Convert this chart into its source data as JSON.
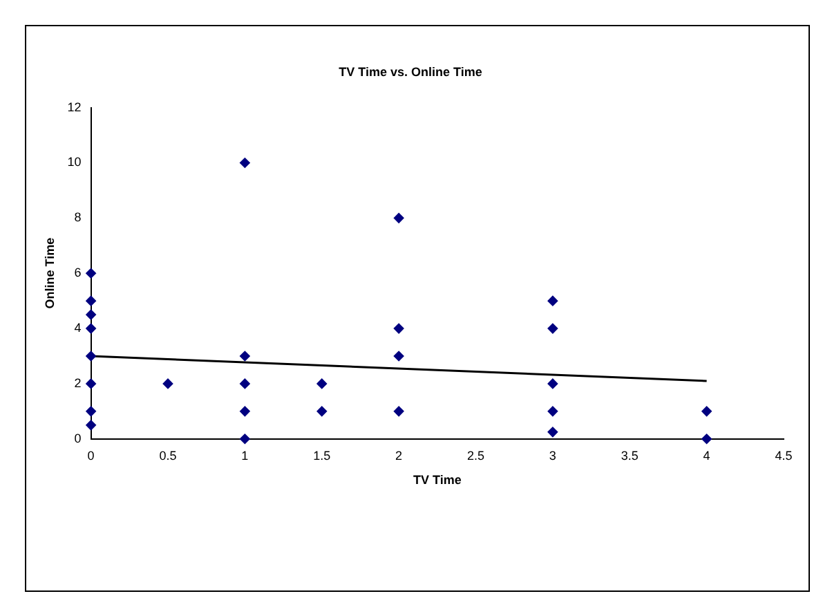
{
  "chart_data": {
    "type": "scatter",
    "title": "TV Time vs. Online Time",
    "xlabel": "TV Time",
    "ylabel": "Online Time",
    "series": [
      {
        "color": "#000080",
        "x": [
          0,
          0,
          0,
          0,
          0,
          0,
          0,
          0,
          0.5,
          1,
          1,
          1,
          1,
          1,
          1.5,
          1.5,
          2,
          2,
          2,
          2,
          3,
          3,
          3,
          3,
          3,
          4,
          4
        ],
        "values": [
          0.5,
          1,
          2,
          3,
          4,
          4.5,
          5,
          6,
          2,
          0,
          1,
          2,
          3,
          10,
          1,
          2,
          1,
          3,
          4,
          8,
          0.25,
          1,
          2,
          4,
          5,
          0,
          1
        ]
      },
      {
        "type": "line",
        "marker": "none",
        "color": "#000000",
        "x": [
          0,
          4
        ],
        "values": [
          3,
          2.1
        ]
      }
    ],
    "xlim": [
      0,
      4.5
    ],
    "xticks": [
      0,
      0.5,
      1,
      1.5,
      2,
      2.5,
      3,
      3.5,
      4,
      4.5
    ],
    "ylim": [
      0,
      12
    ],
    "yticks": [
      0,
      2,
      4,
      6,
      8,
      10,
      12
    ],
    "grid": false,
    "legend": false,
    "marker": "diamond"
  }
}
